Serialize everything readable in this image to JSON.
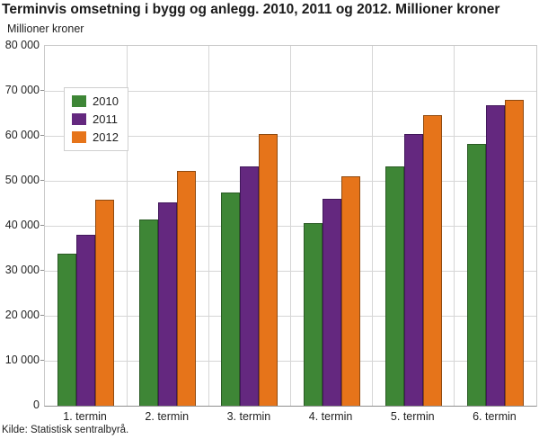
{
  "title": "Terminvis omsetning i bygg og anlegg. 2010, 2011 og 2012. Millioner kroner",
  "source": "Kilde: Statistisk sentralbyrå.",
  "chart_data": {
    "type": "bar",
    "title": "Terminvis omsetning i bygg og anlegg. 2010, 2011 og 2012. Millioner kroner",
    "ylabel": "Millioner kroner",
    "xlabel": "",
    "categories": [
      "1. termin",
      "2. termin",
      "3. termin",
      "4. termin",
      "5. termin",
      "6. termin"
    ],
    "series": [
      {
        "name": "2010",
        "color": "#3e8636",
        "border_color": "#2a5a24",
        "values": [
          33900,
          41400,
          47400,
          40600,
          53200,
          58300
        ]
      },
      {
        "name": "2011",
        "color": "#64287f",
        "border_color": "#41175a",
        "values": [
          38000,
          45200,
          53300,
          46000,
          60400,
          66800
        ]
      },
      {
        "name": "2012",
        "color": "#e6741a",
        "border_color": "#8f4a10",
        "values": [
          45900,
          52300,
          60400,
          51100,
          64600,
          68000
        ]
      }
    ],
    "ylim": [
      0,
      80000
    ],
    "ytick_step": 10000,
    "ytick_labels": [
      "0",
      "10 000",
      "20 000",
      "30 000",
      "40 000",
      "50 000",
      "60 000",
      "70 000",
      "80 000"
    ],
    "grid": true,
    "legend_position": "top-left"
  },
  "colors": {
    "grid": "#d6d6d6",
    "frame": "#c9c9c9",
    "axis": "#8f8f8f",
    "text": "#222222",
    "title_text": "#1a1a1a"
  }
}
